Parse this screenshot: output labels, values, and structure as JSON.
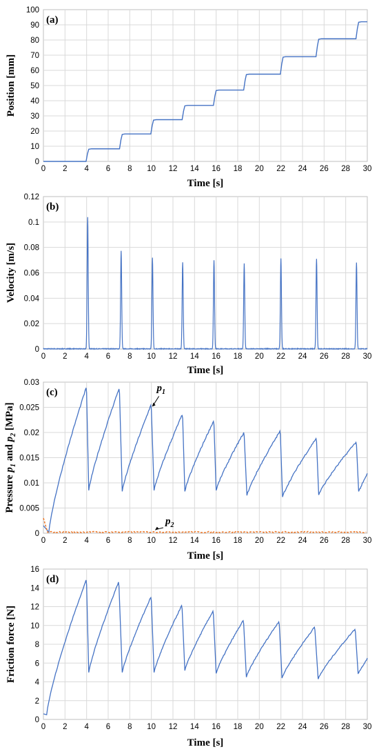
{
  "colors": {
    "series_blue": "#4472C4",
    "series_orange": "#ED7D31",
    "grid": "#D9D9D9",
    "axis": "#BFBFBF"
  },
  "chart_data": [
    {
      "id": "a",
      "type": "line",
      "panel_label": "(a)",
      "xlabel": "Time [s]",
      "ylabel": "Position [mm]",
      "xlim": [
        0,
        30
      ],
      "ylim": [
        0,
        100
      ],
      "xticks": [
        0,
        2,
        4,
        6,
        8,
        10,
        12,
        14,
        16,
        18,
        20,
        22,
        24,
        26,
        28,
        30
      ],
      "yticks": [
        0,
        10,
        20,
        30,
        40,
        50,
        60,
        70,
        80,
        90,
        100
      ],
      "grid": true,
      "step_times": [
        4.0,
        7.1,
        10.0,
        12.9,
        15.8,
        18.6,
        22.0,
        25.3,
        29.0
      ],
      "step_levels": [
        0,
        8.3,
        18.1,
        27.5,
        36.9,
        47.0,
        57.5,
        69.0,
        80.8,
        92.0
      ],
      "series": [
        {
          "values_description_free": true,
          "color": "#4472C4"
        }
      ]
    },
    {
      "id": "b",
      "type": "line",
      "panel_label": "(b)",
      "xlabel": "Time [s]",
      "ylabel": "Velocity [m/s]",
      "xlim": [
        0,
        30
      ],
      "ylim": [
        0,
        0.12
      ],
      "xticks": [
        0,
        2,
        4,
        6,
        8,
        10,
        12,
        14,
        16,
        18,
        20,
        22,
        24,
        26,
        28,
        30
      ],
      "yticks": [
        0,
        0.02,
        0.04,
        0.06,
        0.08,
        0.1,
        0.12
      ],
      "ytick_labels": [
        "0",
        "0.02",
        "0.04",
        "0.06",
        "0.08",
        "0.1",
        "0.12"
      ],
      "grid": true,
      "peak_times": [
        4.1,
        7.2,
        10.1,
        12.9,
        15.8,
        18.6,
        22.0,
        25.3,
        29.0
      ],
      "peak_values": [
        0.104,
        0.077,
        0.072,
        0.068,
        0.07,
        0.067,
        0.071,
        0.071,
        0.068
      ],
      "color": "#4472C4"
    },
    {
      "id": "c",
      "type": "line",
      "panel_label": "(c)",
      "xlabel": "Time [s]",
      "ylabel": "Pressure p1 and p2 [MPa]",
      "ylabel_parts": [
        "Pressure ",
        "p",
        "1",
        " and ",
        "p",
        "2",
        " [MPa]"
      ],
      "xlim": [
        0,
        30
      ],
      "ylim": [
        0,
        0.03
      ],
      "xticks": [
        0,
        2,
        4,
        6,
        8,
        10,
        12,
        14,
        16,
        18,
        20,
        22,
        24,
        26,
        28,
        30
      ],
      "yticks": [
        0,
        0.005,
        0.01,
        0.015,
        0.02,
        0.025,
        0.03
      ],
      "ytick_labels": [
        "0",
        "0.005",
        "0.01",
        "0.015",
        "0.02",
        "0.025",
        "0.03"
      ],
      "grid": true,
      "annotations": [
        {
          "base": "p",
          "sub": "1",
          "points_to": [
            10.0,
            0.025
          ]
        },
        {
          "base": "p",
          "sub": "2",
          "points_to": [
            10.2,
            0.0003
          ]
        }
      ],
      "series": [
        {
          "color": "#4472C4",
          "start": [
            0,
            0.0015
          ],
          "min_point": [
            0.5,
            0.0002
          ],
          "cycles": [
            {
              "peak_t": 3.95,
              "peak": 0.0288,
              "valley_t": 4.2,
              "valley": 0.0085
            },
            {
              "peak_t": 7.0,
              "peak": 0.0287,
              "valley_t": 7.3,
              "valley": 0.0083
            },
            {
              "peak_t": 9.95,
              "peak": 0.0254,
              "valley_t": 10.25,
              "valley": 0.0085
            },
            {
              "peak_t": 12.85,
              "peak": 0.0235,
              "valley_t": 13.1,
              "valley": 0.0083
            },
            {
              "peak_t": 15.75,
              "peak": 0.0222,
              "valley_t": 16.0,
              "valley": 0.0085
            },
            {
              "peak_t": 18.55,
              "peak": 0.0199,
              "valley_t": 18.85,
              "valley": 0.0075
            },
            {
              "peak_t": 21.9,
              "peak": 0.0202,
              "valley_t": 22.15,
              "valley": 0.0072
            },
            {
              "peak_t": 25.25,
              "peak": 0.0188,
              "valley_t": 25.5,
              "valley": 0.0076
            },
            {
              "peak_t": 28.95,
              "peak": 0.0181,
              "valley_t": 29.2,
              "valley": 0.0083
            }
          ],
          "end": [
            30,
            0.0118
          ]
        },
        {
          "color": "#ED7D31",
          "start": [
            0,
            0.003
          ],
          "baseline": 0.00022,
          "noise": 0.00025
        }
      ]
    },
    {
      "id": "d",
      "type": "line",
      "panel_label": "(d)",
      "xlabel": "Time [s]",
      "ylabel": "Friction force [N]",
      "xlim": [
        0,
        30
      ],
      "ylim": [
        0,
        16
      ],
      "xticks": [
        0,
        2,
        4,
        6,
        8,
        10,
        12,
        14,
        16,
        18,
        20,
        22,
        24,
        26,
        28,
        30
      ],
      "yticks": [
        0,
        2,
        4,
        6,
        8,
        10,
        12,
        14,
        16
      ],
      "grid": true,
      "series": [
        {
          "color": "#4472C4",
          "start": [
            0,
            0.6
          ],
          "min_point": [
            0.3,
            0.5
          ],
          "cycles": [
            {
              "peak_t": 3.95,
              "peak": 14.8,
              "valley_t": 4.2,
              "valley": 5.0
            },
            {
              "peak_t": 6.95,
              "peak": 14.6,
              "valley_t": 7.3,
              "valley": 5.0
            },
            {
              "peak_t": 9.95,
              "peak": 13.0,
              "valley_t": 10.25,
              "valley": 5.0
            },
            {
              "peak_t": 12.8,
              "peak": 12.1,
              "valley_t": 13.1,
              "valley": 5.2
            },
            {
              "peak_t": 15.7,
              "peak": 11.5,
              "valley_t": 16.0,
              "valley": 4.9
            },
            {
              "peak_t": 18.5,
              "peak": 10.5,
              "valley_t": 18.8,
              "valley": 4.5
            },
            {
              "peak_t": 21.8,
              "peak": 10.4,
              "valley_t": 22.1,
              "valley": 4.4
            },
            {
              "peak_t": 25.1,
              "peak": 9.8,
              "valley_t": 25.45,
              "valley": 4.3
            },
            {
              "peak_t": 28.85,
              "peak": 9.6,
              "valley_t": 29.15,
              "valley": 4.9
            }
          ],
          "end": [
            30,
            6.5
          ]
        }
      ]
    }
  ]
}
